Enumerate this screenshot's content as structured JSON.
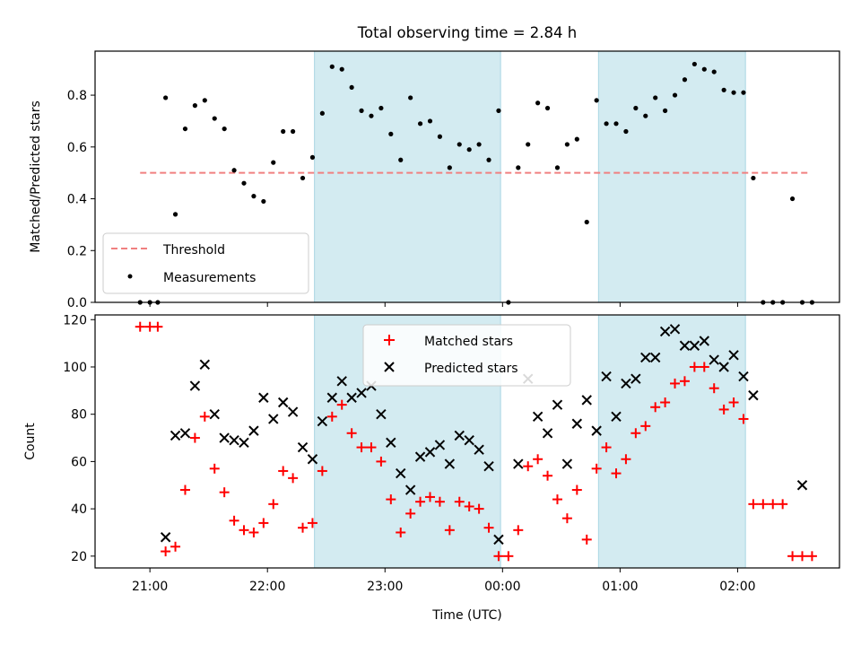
{
  "chart_data": [
    {
      "type": "scatter",
      "title": "Total observing time = 2.84 h",
      "ylabel": "Matched/Predicted stars",
      "xlim": [
        "20:32",
        "02:52"
      ],
      "ylim": [
        0,
        0.97
      ],
      "yticks": [
        0.0,
        0.2,
        0.4,
        0.6,
        0.8
      ],
      "ytick_labels": [
        "0.0",
        "0.2",
        "0.4",
        "0.6",
        "0.8"
      ],
      "shaded_intervals": [
        [
          "22:24",
          "23:59"
        ],
        [
          "00:49",
          "02:04"
        ]
      ],
      "shade_color": "#d3ebf1",
      "legend_placement": "lower-left",
      "series": [
        {
          "name": "Threshold",
          "kind": "dashed-line",
          "color": "#f08080",
          "x": [
            "20:55",
            "02:37"
          ],
          "y": [
            0.5,
            0.5
          ]
        },
        {
          "name": "Measurements",
          "kind": "dots",
          "color": "#000000",
          "x": [
            "20:55",
            "21:00",
            "21:04",
            "21:08",
            "21:13",
            "21:18",
            "21:23",
            "21:28",
            "21:33",
            "21:38",
            "21:43",
            "21:48",
            "21:53",
            "21:58",
            "22:03",
            "22:08",
            "22:13",
            "22:18",
            "22:23",
            "22:28",
            "22:33",
            "22:38",
            "22:43",
            "22:48",
            "22:53",
            "22:58",
            "23:03",
            "23:08",
            "23:13",
            "23:18",
            "23:23",
            "23:28",
            "23:33",
            "23:38",
            "23:43",
            "23:48",
            "23:53",
            "23:58",
            "00:03",
            "00:08",
            "00:13",
            "00:18",
            "00:23",
            "00:28",
            "00:33",
            "00:38",
            "00:43",
            "00:48",
            "00:53",
            "00:58",
            "01:03",
            "01:08",
            "01:13",
            "01:18",
            "01:23",
            "01:28",
            "01:33",
            "01:38",
            "01:43",
            "01:48",
            "01:53",
            "01:58",
            "02:03",
            "02:08",
            "02:13",
            "02:18",
            "02:23",
            "02:28",
            "02:33",
            "02:38"
          ],
          "y": [
            0,
            0,
            0,
            0.79,
            0.34,
            0.67,
            0.76,
            0.78,
            0.71,
            0.67,
            0.51,
            0.46,
            0.41,
            0.39,
            0.54,
            0.66,
            0.66,
            0.48,
            0.56,
            0.73,
            0.91,
            0.9,
            0.83,
            0.74,
            0.72,
            0.75,
            0.65,
            0.55,
            0.79,
            0.69,
            0.7,
            0.64,
            0.52,
            0.61,
            0.59,
            0.61,
            0.55,
            0.74,
            0,
            0.52,
            0.61,
            0.77,
            0.75,
            0.52,
            0.61,
            0.63,
            0.31,
            0.78,
            0.69,
            0.69,
            0.66,
            0.75,
            0.72,
            0.79,
            0.74,
            0.8,
            0.86,
            0.92,
            0.9,
            0.89,
            0.82,
            0.81,
            0.81,
            0.48,
            0,
            0,
            0,
            0.4,
            0,
            0
          ]
        }
      ],
      "legend": [
        "Threshold",
        "Measurements"
      ]
    },
    {
      "type": "scatter",
      "xlabel": "Time (UTC)",
      "ylabel": "Count",
      "xlim": [
        "20:32",
        "02:52"
      ],
      "ylim": [
        15,
        122
      ],
      "yticks": [
        20,
        40,
        60,
        80,
        100,
        120
      ],
      "ytick_labels": [
        "20",
        "40",
        "60",
        "80",
        "100",
        "120"
      ],
      "xticks": [
        "21:00",
        "22:00",
        "23:00",
        "00:00",
        "01:00",
        "02:00"
      ],
      "shaded_intervals": [
        [
          "22:24",
          "23:59"
        ],
        [
          "00:49",
          "02:04"
        ]
      ],
      "shade_color": "#d3ebf1",
      "legend_placement": "upper-center",
      "series": [
        {
          "name": "Matched stars",
          "marker": "+",
          "color": "#ff0000",
          "x": [
            "20:55",
            "21:00",
            "21:04",
            "21:08",
            "21:13",
            "21:18",
            "21:23",
            "21:28",
            "21:33",
            "21:38",
            "21:43",
            "21:48",
            "21:53",
            "21:58",
            "22:03",
            "22:08",
            "22:13",
            "22:18",
            "22:23",
            "22:28",
            "22:33",
            "22:38",
            "22:43",
            "22:48",
            "22:53",
            "22:58",
            "23:03",
            "23:08",
            "23:13",
            "23:18",
            "23:23",
            "23:28",
            "23:33",
            "23:38",
            "23:43",
            "23:48",
            "23:53",
            "23:58",
            "00:03",
            "00:08",
            "00:13",
            "00:18",
            "00:23",
            "00:28",
            "00:33",
            "00:38",
            "00:43",
            "00:48",
            "00:53",
            "00:58",
            "01:03",
            "01:08",
            "01:13",
            "01:18",
            "01:23",
            "01:28",
            "01:33",
            "01:38",
            "01:43",
            "01:48",
            "01:53",
            "01:58",
            "02:03",
            "02:08",
            "02:13",
            "02:18",
            "02:23",
            "02:28",
            "02:33",
            "02:38"
          ],
          "y": [
            117,
            117,
            117,
            22,
            24,
            48,
            70,
            79,
            57,
            47,
            35,
            31,
            30,
            34,
            42,
            56,
            53,
            32,
            34,
            56,
            79,
            84,
            72,
            66,
            66,
            60,
            44,
            30,
            38,
            43,
            45,
            43,
            31,
            43,
            41,
            40,
            32,
            20,
            20,
            31,
            58,
            61,
            54,
            44,
            36,
            48,
            27,
            57,
            66,
            55,
            61,
            72,
            75,
            83,
            85,
            93,
            94,
            100,
            100,
            91,
            82,
            85,
            78,
            42,
            42,
            42,
            42,
            20,
            20,
            20
          ]
        },
        {
          "name": "Predicted stars",
          "marker": "x",
          "color": "#000000",
          "x": [
            "21:08",
            "21:13",
            "21:18",
            "21:23",
            "21:28",
            "21:33",
            "21:38",
            "21:43",
            "21:48",
            "21:53",
            "21:58",
            "22:03",
            "22:08",
            "22:13",
            "22:18",
            "22:23",
            "22:28",
            "22:33",
            "22:38",
            "22:43",
            "22:48",
            "22:53",
            "22:58",
            "23:03",
            "23:08",
            "23:13",
            "23:18",
            "23:23",
            "23:28",
            "23:33",
            "23:38",
            "23:43",
            "23:48",
            "23:53",
            "23:58",
            "00:08",
            "00:13",
            "00:18",
            "00:23",
            "00:28",
            "00:33",
            "00:38",
            "00:43",
            "00:48",
            "00:53",
            "00:58",
            "01:03",
            "01:08",
            "01:13",
            "01:18",
            "01:23",
            "01:28",
            "01:33",
            "01:38",
            "01:43",
            "01:48",
            "01:53",
            "01:58",
            "02:03",
            "02:08",
            "02:33"
          ],
          "y": [
            28,
            71,
            72,
            92,
            101,
            80,
            70,
            69,
            68,
            73,
            87,
            78,
            85,
            81,
            66,
            61,
            77,
            87,
            94,
            87,
            89,
            92,
            80,
            68,
            55,
            48,
            62,
            64,
            67,
            59,
            71,
            69,
            65,
            58,
            27,
            59,
            95,
            79,
            72,
            84,
            59,
            76,
            86,
            73,
            96,
            79,
            93,
            95,
            104,
            104,
            115,
            116,
            109,
            109,
            111,
            103,
            100,
            105,
            96,
            88,
            50
          ]
        }
      ],
      "legend": [
        "Matched stars",
        "Predicted stars"
      ]
    }
  ]
}
